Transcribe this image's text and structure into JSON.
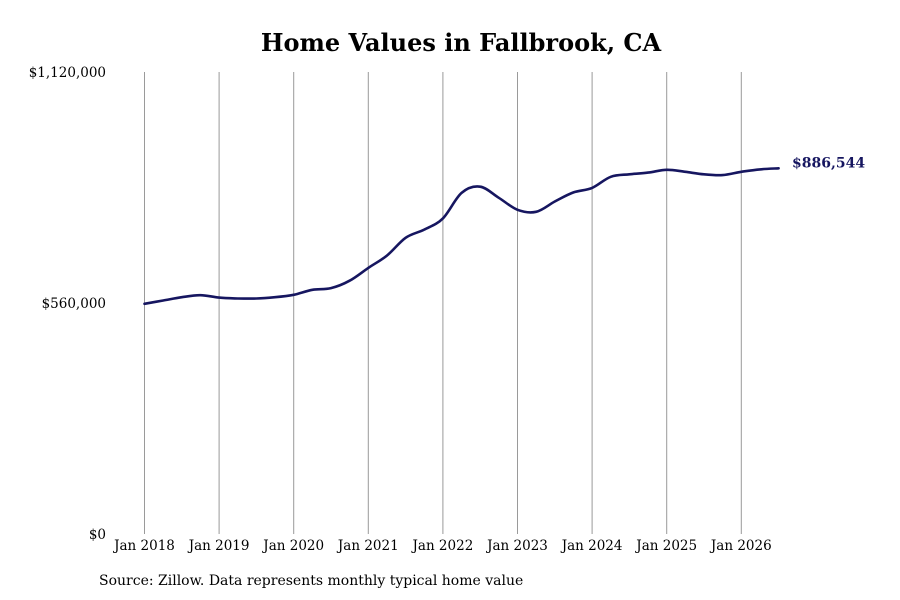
{
  "chart_data": {
    "type": "line",
    "title": "Home Values in Fallbrook, CA",
    "source": "Source: Zillow. Data represents monthly typical home value",
    "ylim": [
      0,
      1120000
    ],
    "y_ticks": [
      {
        "value": 0,
        "label": "$0"
      },
      {
        "value": 560000,
        "label": "$560,000"
      },
      {
        "value": 1120000,
        "label": "$1,120,000"
      }
    ],
    "x_ticks": [
      {
        "date": "2018-01",
        "label": "Jan 2018"
      },
      {
        "date": "2019-01",
        "label": "Jan 2019"
      },
      {
        "date": "2020-01",
        "label": "Jan 2020"
      },
      {
        "date": "2021-01",
        "label": "Jan 2021"
      },
      {
        "date": "2022-01",
        "label": "Jan 2022"
      },
      {
        "date": "2023-01",
        "label": "Jan 2023"
      },
      {
        "date": "2024-01",
        "label": "Jan 2024"
      },
      {
        "date": "2025-01",
        "label": "Jan 2025"
      },
      {
        "date": "2026-01",
        "label": "Jan 2026"
      }
    ],
    "grid": "vertical",
    "line_color": "#161660",
    "end_label": "$886,544",
    "series": [
      {
        "points": [
          [
            "2018-01",
            558000
          ],
          [
            "2018-04",
            566000
          ],
          [
            "2018-07",
            574000
          ],
          [
            "2018-10",
            579000
          ],
          [
            "2019-01",
            573000
          ],
          [
            "2019-04",
            571000
          ],
          [
            "2019-07",
            571000
          ],
          [
            "2019-10",
            574000
          ],
          [
            "2020-01",
            580000
          ],
          [
            "2020-04",
            592000
          ],
          [
            "2020-07",
            596000
          ],
          [
            "2020-10",
            614000
          ],
          [
            "2021-01",
            645000
          ],
          [
            "2021-04",
            675000
          ],
          [
            "2021-07",
            718000
          ],
          [
            "2021-10",
            738000
          ],
          [
            "2022-01",
            765000
          ],
          [
            "2022-04",
            827000
          ],
          [
            "2022-07",
            842000
          ],
          [
            "2022-10",
            815000
          ],
          [
            "2023-01",
            786000
          ],
          [
            "2023-04",
            781000
          ],
          [
            "2023-07",
            806000
          ],
          [
            "2023-10",
            828000
          ],
          [
            "2024-01",
            839000
          ],
          [
            "2024-04",
            866000
          ],
          [
            "2024-07",
            872000
          ],
          [
            "2024-10",
            876000
          ],
          [
            "2025-01",
            883000
          ],
          [
            "2025-04",
            878000
          ],
          [
            "2025-07",
            872000
          ],
          [
            "2025-10",
            870000
          ],
          [
            "2026-01",
            878000
          ],
          [
            "2026-04",
            884000
          ],
          [
            "2026-07",
            886544
          ]
        ]
      }
    ]
  }
}
